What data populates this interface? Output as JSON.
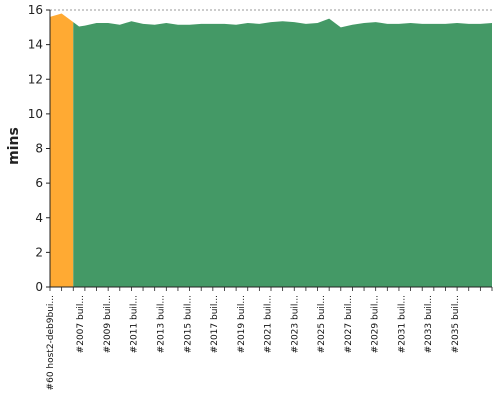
{
  "chart_data": {
    "type": "area",
    "title": "",
    "xlabel": "",
    "ylabel": "mins",
    "ylim": [
      0,
      16
    ],
    "yticks": [
      0,
      2,
      4,
      6,
      8,
      10,
      12,
      14,
      16
    ],
    "grid": true,
    "x_tick_labels": [
      "#60 host2-deb9bui...",
      "#2007 buil...",
      "#2009 buil...",
      "#2011 buil...",
      "#2013 buil...",
      "#2015 buil...",
      "#2017 buil...",
      "#2019 buil...",
      "#2021 buil...",
      "#2023 buil...",
      "#2025 buil...",
      "#2027 buil...",
      "#2029 buil...",
      "#2031 buil...",
      "#2033 buil...",
      "#2035 buil..."
    ],
    "series": [
      {
        "color": "#FFAA33",
        "points": [
          [
            0,
            15.6
          ],
          [
            1,
            15.8
          ],
          [
            2,
            15.3
          ]
        ]
      },
      {
        "color": "#449966",
        "points": [
          [
            2,
            15.3
          ],
          [
            2.5,
            15.05
          ],
          [
            3,
            15.1
          ],
          [
            4,
            15.25
          ],
          [
            5,
            15.25
          ],
          [
            6,
            15.15
          ],
          [
            7,
            15.35
          ],
          [
            8,
            15.2
          ],
          [
            9,
            15.15
          ],
          [
            10,
            15.25
          ],
          [
            11,
            15.15
          ],
          [
            12,
            15.15
          ],
          [
            13,
            15.2
          ],
          [
            14,
            15.2
          ],
          [
            15,
            15.2
          ],
          [
            16,
            15.15
          ],
          [
            17,
            15.25
          ],
          [
            18,
            15.2
          ],
          [
            19,
            15.3
          ],
          [
            20,
            15.35
          ],
          [
            21,
            15.3
          ],
          [
            22,
            15.2
          ],
          [
            23,
            15.25
          ],
          [
            24,
            15.5
          ],
          [
            25,
            15.0
          ],
          [
            26,
            15.15
          ],
          [
            27,
            15.25
          ],
          [
            28,
            15.3
          ],
          [
            29,
            15.2
          ],
          [
            30,
            15.2
          ],
          [
            31,
            15.25
          ],
          [
            32,
            15.2
          ],
          [
            33,
            15.2
          ],
          [
            34,
            15.2
          ],
          [
            35,
            15.25
          ],
          [
            36,
            15.2
          ],
          [
            37,
            15.2
          ],
          [
            38,
            15.25
          ]
        ]
      }
    ]
  }
}
